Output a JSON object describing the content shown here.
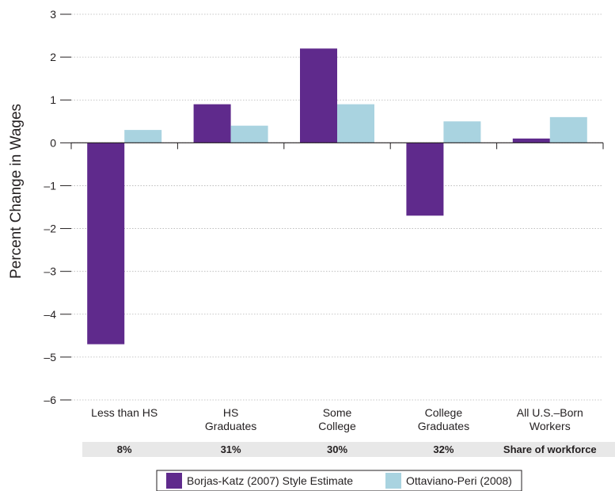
{
  "chart_data": {
    "type": "bar",
    "title": "",
    "xlabel": "",
    "ylabel": "Percent Change in Wages",
    "ylim": [
      -6,
      3
    ],
    "yticks": [
      3,
      2,
      1,
      0,
      -1,
      -2,
      -3,
      -4,
      -5,
      -6
    ],
    "ytick_labels": [
      "3",
      "2",
      "1",
      "0",
      "–1",
      "–2",
      "–3",
      "–4",
      "–5",
      "–6"
    ],
    "grid": true,
    "categories": [
      [
        "Less than HS"
      ],
      [
        "HS",
        "Graduates"
      ],
      [
        "Some",
        "College"
      ],
      [
        "College",
        "Graduates"
      ],
      [
        "All U.S.–Born",
        "Workers"
      ]
    ],
    "series": [
      {
        "name": "Borjas-Katz (2007) Style Estimate",
        "color": "#5f2a8c",
        "values": [
          -4.7,
          0.9,
          2.2,
          -1.7,
          0.1
        ]
      },
      {
        "name": "Ottaviano-Peri (2008)",
        "color": "#a9d3e0",
        "values": [
          0.3,
          0.4,
          0.9,
          0.5,
          0.6
        ]
      }
    ],
    "share_row": {
      "values": [
        "8%",
        "31%",
        "30%",
        "32%"
      ],
      "label": "Share of workforce",
      "background": "#e8e8e8"
    },
    "legend_position": "bottom-center"
  }
}
